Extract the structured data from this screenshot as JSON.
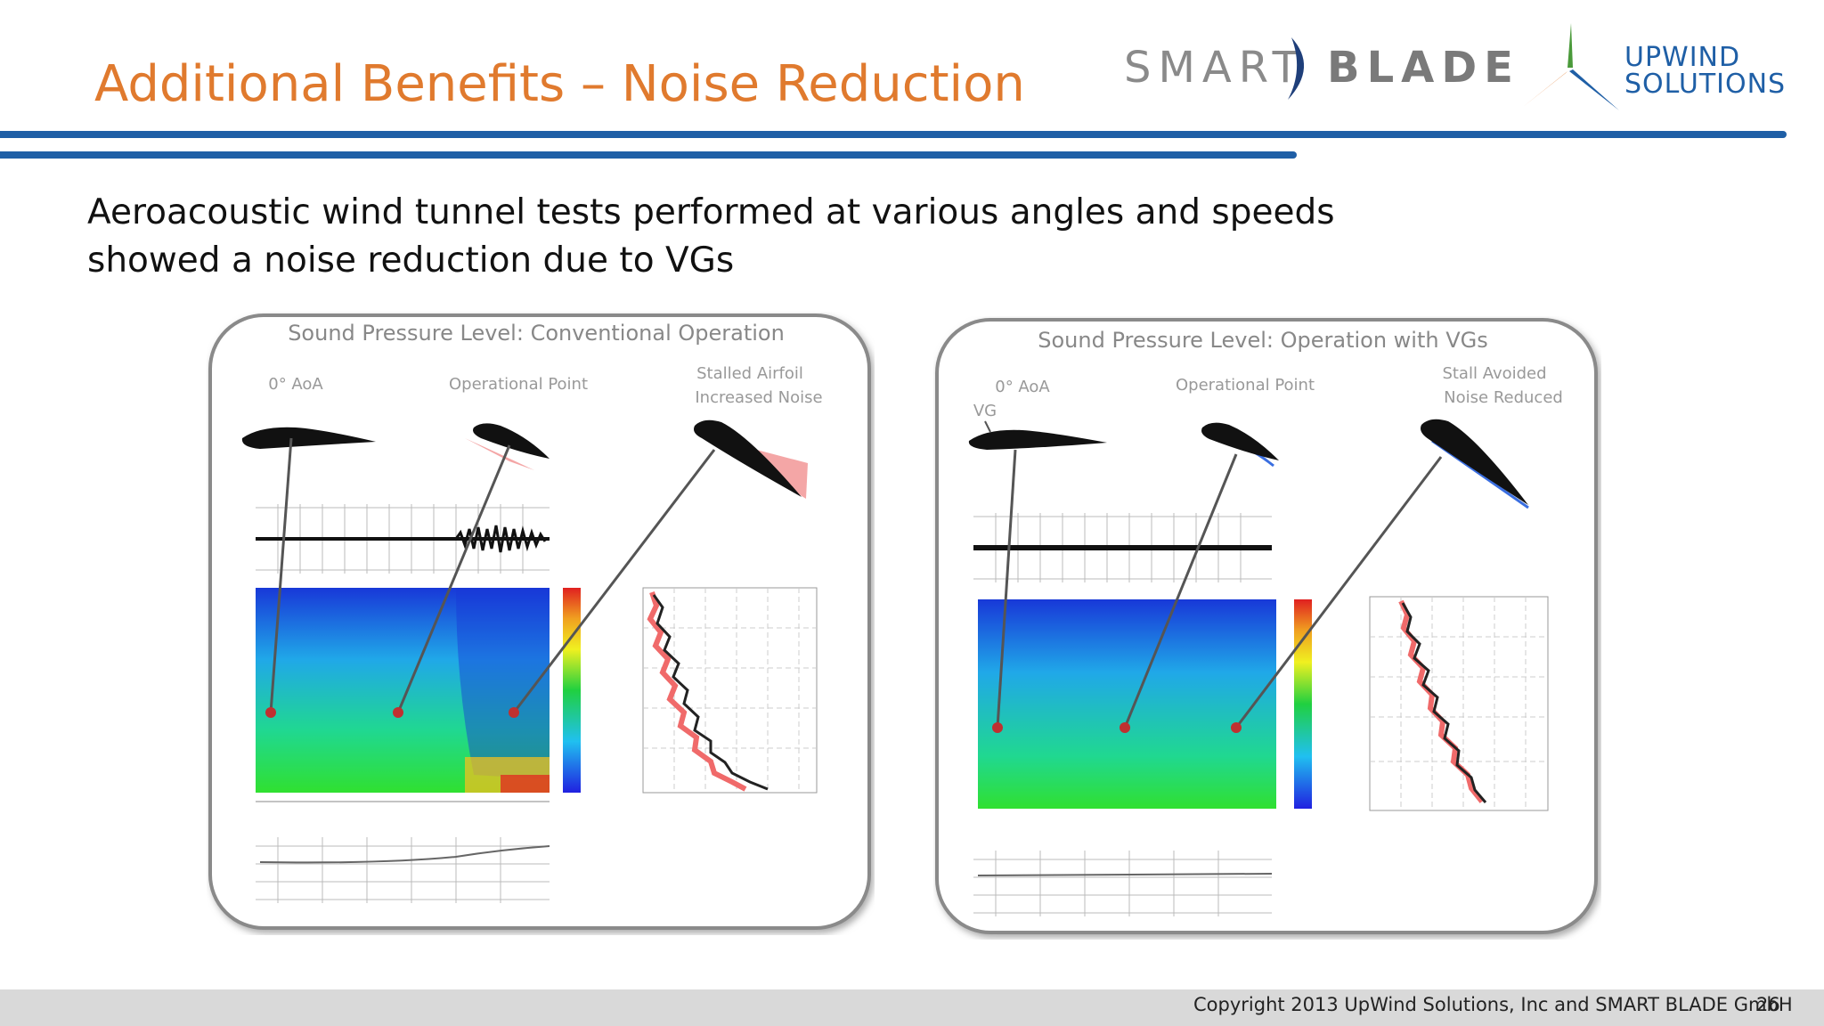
{
  "slide": {
    "title": "Additional Benefits – Noise Reduction",
    "subtitle_line1": "Aeroacoustic wind tunnel tests performed at various angles and speeds",
    "subtitle_line2": "showed a noise reduction due to VGs",
    "page_number": "26",
    "copyright": "Copyright 2013 UpWind Solutions, Inc and SMART BLADE GmbH"
  },
  "logos": {
    "smart_blade": {
      "word1": "SMART",
      "word2": "BLADE"
    },
    "upwind": {
      "line1": "UPWIND",
      "line2": "SOLUTIONS"
    }
  },
  "figures": {
    "left": {
      "title": "Sound Pressure Level: Conventional Operation",
      "label_aoa": "0° AoA",
      "label_op": "Operational Point",
      "label_stall_1": "Stalled Airfoil",
      "label_stall_2": "Increased Noise",
      "label_vg": ""
    },
    "right": {
      "title": "Sound Pressure Level: Operation with VGs",
      "label_aoa": "0° AoA",
      "label_op": "Operational Point",
      "label_stall_1": "Stall Avoided",
      "label_stall_2": "Noise Reduced",
      "label_vg": "VG"
    }
  },
  "colors": {
    "title": "#e07a2e",
    "rule": "#1f5fa6",
    "stall_highlight": "#f4a6a6",
    "vg_highlight": "#3a6ee0"
  }
}
